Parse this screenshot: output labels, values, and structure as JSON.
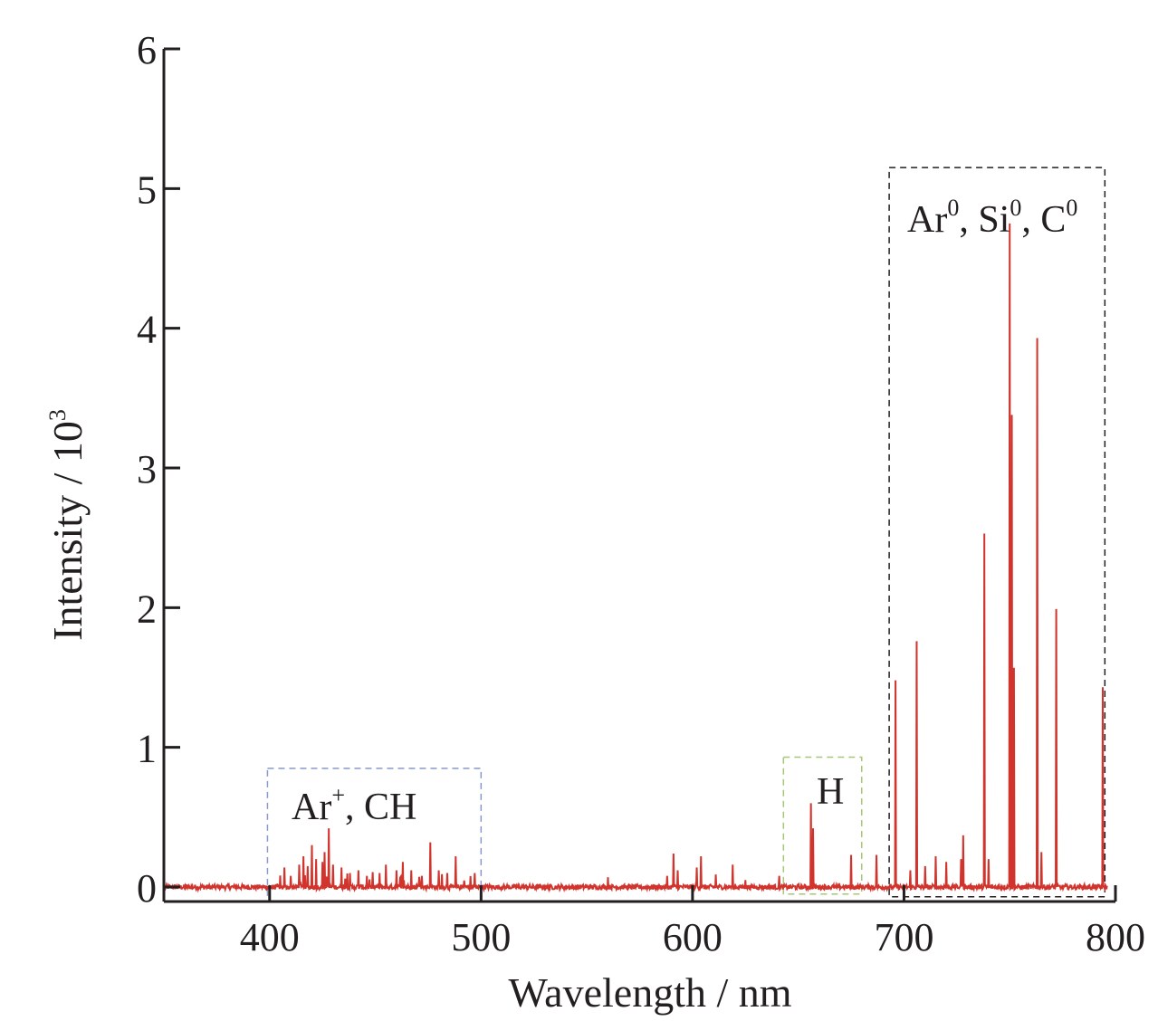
{
  "chart_data": {
    "type": "line",
    "xlabel": "Wavelength / nm",
    "ylabel_main": "Intensity / 10",
    "ylabel_sup": "3",
    "xlim": [
      350,
      800
    ],
    "ylim": [
      0,
      6
    ],
    "xticks": [
      "400",
      "500",
      "600",
      "700",
      "800"
    ],
    "yticks": [
      "0",
      "1",
      "2",
      "3",
      "4",
      "5",
      "6"
    ],
    "grid": false,
    "line_color": "#d0342c",
    "baseline": 0.0,
    "peaks": [
      [
        405,
        0.1
      ],
      [
        407,
        0.14
      ],
      [
        410,
        0.08
      ],
      [
        414,
        0.16
      ],
      [
        416,
        0.22
      ],
      [
        418,
        0.15
      ],
      [
        420,
        0.3
      ],
      [
        422,
        0.2
      ],
      [
        425,
        0.18
      ],
      [
        426,
        0.25
      ],
      [
        428,
        0.42
      ],
      [
        430,
        0.16
      ],
      [
        434,
        0.14
      ],
      [
        438,
        0.1
      ],
      [
        442,
        0.12
      ],
      [
        446,
        0.08
      ],
      [
        452,
        0.1
      ],
      [
        455,
        0.16
      ],
      [
        460,
        0.12
      ],
      [
        463,
        0.18
      ],
      [
        467,
        0.12
      ],
      [
        472,
        0.08
      ],
      [
        476,
        0.32
      ],
      [
        480,
        0.12
      ],
      [
        484,
        0.1
      ],
      [
        488,
        0.22
      ],
      [
        492,
        0.09
      ],
      [
        497,
        0.1
      ],
      [
        560,
        0.07
      ],
      [
        588,
        0.08
      ],
      [
        591,
        0.24
      ],
      [
        593,
        0.12
      ],
      [
        602,
        0.14
      ],
      [
        604,
        0.22
      ],
      [
        611,
        0.09
      ],
      [
        619,
        0.16
      ],
      [
        625,
        0.05
      ],
      [
        641,
        0.08
      ],
      [
        656,
        0.6
      ],
      [
        657,
        0.42
      ],
      [
        675,
        0.23
      ],
      [
        687,
        0.23
      ],
      [
        696,
        1.48
      ],
      [
        703,
        0.12
      ],
      [
        706,
        1.76
      ],
      [
        710,
        0.15
      ],
      [
        715,
        0.22
      ],
      [
        720,
        0.18
      ],
      [
        727,
        0.2
      ],
      [
        728,
        0.37
      ],
      [
        738,
        2.53
      ],
      [
        740,
        0.2
      ],
      [
        750,
        4.75
      ],
      [
        751,
        3.38
      ],
      [
        752,
        1.57
      ],
      [
        763,
        3.93
      ],
      [
        765,
        0.25
      ],
      [
        772,
        1.99
      ],
      [
        794,
        1.43
      ]
    ],
    "annotations": [
      {
        "text": "Ar",
        "sup": "+",
        "rest": ", CH",
        "x_range": [
          399,
          500
        ],
        "y_range": [
          -0.1,
          0.85
        ],
        "color": "#8899cc"
      },
      {
        "text": "H",
        "sup": "",
        "rest": "",
        "x_range": [
          643,
          680
        ],
        "y_range": [
          -0.05,
          0.93
        ],
        "color": "#a6c77a"
      },
      {
        "text": "Ar",
        "sup": "0",
        "rest": ", Si",
        "sup2": "0",
        "rest2": ", C",
        "sup3": "0",
        "x_range": [
          693,
          795
        ],
        "y_range": [
          -0.07,
          5.15
        ],
        "color": "#231f20"
      }
    ]
  }
}
